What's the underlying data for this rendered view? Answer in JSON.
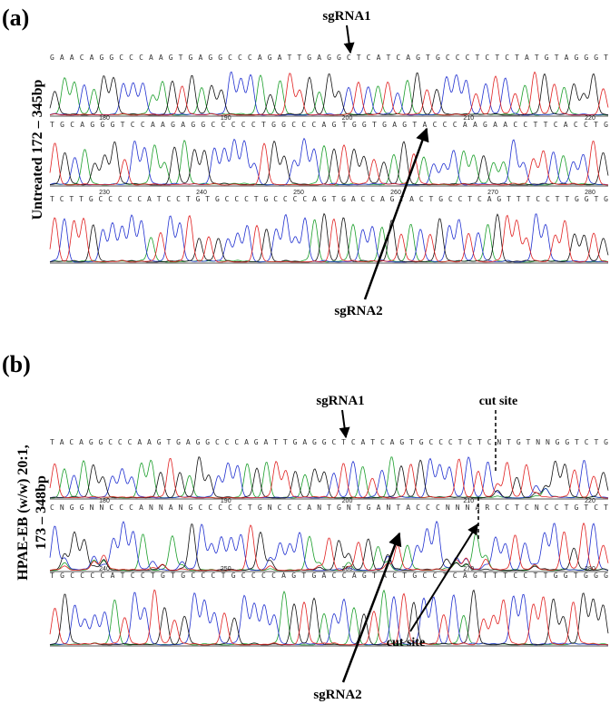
{
  "panels": [
    {
      "label": "(a)",
      "sgRNA1": "sgRNA1",
      "sgRNA2": "sgRNA2",
      "side_label": [
        "Untreated 172 – 345bp"
      ],
      "rows": [
        {
          "numbers": [],
          "sequence": "GAACAGGCCCAAGTGAGGCCCAGATTGAGGCTCATCAGTGCCCTCTCTATGTAGGGT"
        },
        {
          "numbers": [
            180,
            190,
            200,
            210,
            220
          ],
          "sequence": "TGCAGGGTCCAAGAGGCCCCCTGGCCCAGTGGTGAGTACCCAAGAACCTTCACCTG"
        },
        {
          "numbers": [
            230,
            240,
            250,
            260,
            270,
            280
          ],
          "sequence": "TCTTGCCCCCATCCTGTGCCCTGCCCCAGTGACCAGTACTGCCTCAGTTTCCTTGGTG"
        }
      ]
    },
    {
      "label": "(b)",
      "sgRNA1": "sgRNA1",
      "sgRNA2": "sgRNA2",
      "cut_site_top": "cut site",
      "cut_site_bottom": "cut site",
      "side_label": [
        "HPAE-EB (w/w) 20:1,",
        "173 – 348bp"
      ],
      "rows": [
        {
          "numbers": [],
          "sequence": "TACAGGCCCAAGTGAGGCCCAGATTGAGGCTCATCAGTGCCCTCTCNTGTNNGGTCTG"
        },
        {
          "numbers": [
            180,
            190,
            200,
            210,
            220
          ],
          "sequence": "CNGGNNCCCANNANGCCCCCTGNCCCANTGNTGANTACCCNNNARCCTCNCCTGTCT"
        },
        {
          "numbers": [
            240,
            250,
            260,
            270,
            280
          ],
          "sequence": "TGCCCCATCCTGTGCCCTGCCCCAGTGACCAGTACTGCCTCAGTTTCCTTGGTGGG"
        }
      ]
    }
  ]
}
